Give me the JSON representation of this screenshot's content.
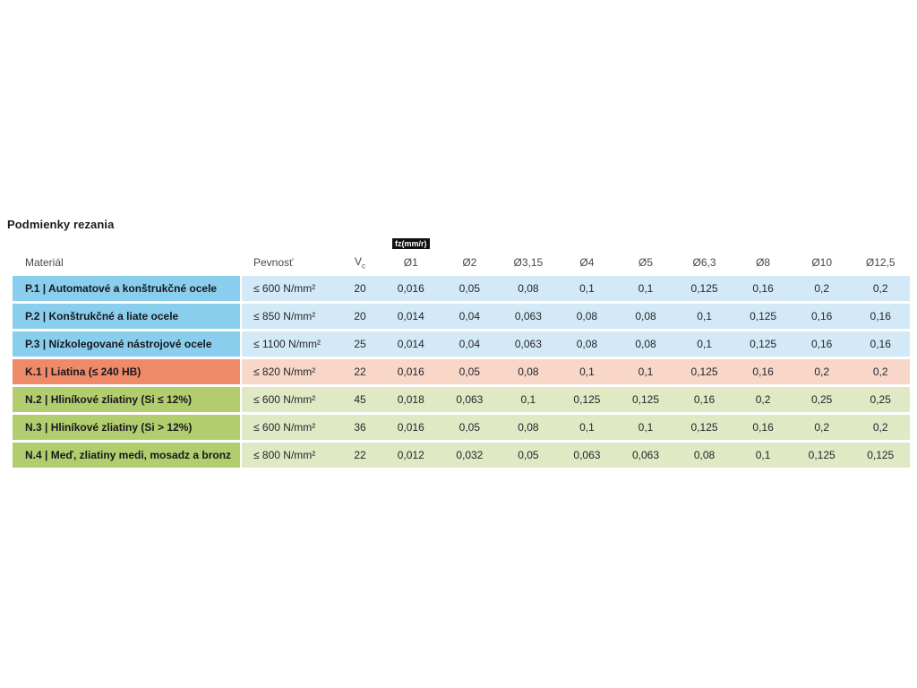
{
  "page": {
    "title": "Podmienky rezania"
  },
  "colors": {
    "steel_dark": "#89ceec",
    "steel_light": "#d4e9f7",
    "cast_iron_dark": "#ef8a68",
    "cast_iron_light": "#f8d7c9",
    "nonferrous_dark": "#b2cd6d",
    "nonferrous_light": "#dfe9c3",
    "badge_bg": "#111111",
    "badge_text": "#ffffff"
  },
  "table": {
    "unit_badge": "fz(mm/r)",
    "headers": {
      "material": "Materiál",
      "pevnost": "Pevnosť",
      "vc_base": "V",
      "vc_sub": "c",
      "diameters": [
        "Ø1",
        "Ø2",
        "Ø3,15",
        "Ø4",
        "Ø5",
        "Ø6,3",
        "Ø8",
        "Ø10",
        "Ø12,5"
      ]
    },
    "rows": [
      {
        "label": "P.1 | Automatové a konštrukčné ocele",
        "pevnost": "≤ 600 N/mm²",
        "vc": "20",
        "values": [
          "0,016",
          "0,05",
          "0,08",
          "0,1",
          "0,1",
          "0,125",
          "0,16",
          "0,2",
          "0,2"
        ]
      },
      {
        "label": "P.2 | Konštrukčné a liate ocele",
        "pevnost": "≤ 850 N/mm²",
        "vc": "20",
        "values": [
          "0,014",
          "0,04",
          "0,063",
          "0,08",
          "0,08",
          "0,1",
          "0,125",
          "0,16",
          "0,16"
        ]
      },
      {
        "label": "P.3 | Nízkolegované nástrojové ocele",
        "pevnost": "≤ 1100 N/mm²",
        "vc": "25",
        "values": [
          "0,014",
          "0,04",
          "0,063",
          "0,08",
          "0,08",
          "0,1",
          "0,125",
          "0,16",
          "0,16"
        ]
      },
      {
        "label": "K.1 | Liatina (≤ 240 HB)",
        "pevnost": "≤ 820 N/mm²",
        "vc": "22",
        "values": [
          "0,016",
          "0,05",
          "0,08",
          "0,1",
          "0,1",
          "0,125",
          "0,16",
          "0,2",
          "0,2"
        ]
      },
      {
        "label": "N.2 | Hliníkové zliatiny (Si ≤ 12%)",
        "pevnost": "≤ 600 N/mm²",
        "vc": "45",
        "values": [
          "0,018",
          "0,063",
          "0,1",
          "0,125",
          "0,125",
          "0,16",
          "0,2",
          "0,25",
          "0,25"
        ]
      },
      {
        "label": "N.3 | Hliníkové zliatiny (Si > 12%)",
        "pevnost": "≤ 600 N/mm²",
        "vc": "36",
        "values": [
          "0,016",
          "0,05",
          "0,08",
          "0,1",
          "0,1",
          "0,125",
          "0,16",
          "0,2",
          "0,2"
        ]
      },
      {
        "label": "N.4 | Meď, zliatiny medi, mosadz a bronz",
        "pevnost": "≤ 800 N/mm²",
        "vc": "22",
        "values": [
          "0,012",
          "0,032",
          "0,05",
          "0,063",
          "0,063",
          "0,08",
          "0,1",
          "0,125",
          "0,125"
        ]
      }
    ]
  }
}
